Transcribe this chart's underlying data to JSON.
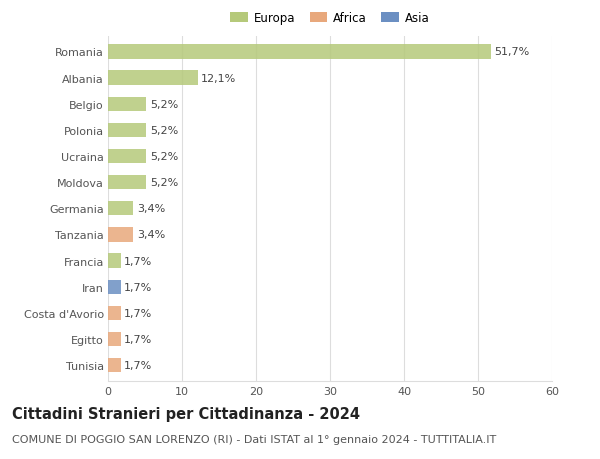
{
  "countries": [
    "Romania",
    "Albania",
    "Belgio",
    "Polonia",
    "Ucraina",
    "Moldova",
    "Germania",
    "Tanzania",
    "Francia",
    "Iran",
    "Costa d'Avorio",
    "Egitto",
    "Tunisia"
  ],
  "values": [
    51.7,
    12.1,
    5.2,
    5.2,
    5.2,
    5.2,
    3.4,
    3.4,
    1.7,
    1.7,
    1.7,
    1.7,
    1.7
  ],
  "labels": [
    "51,7%",
    "12,1%",
    "5,2%",
    "5,2%",
    "5,2%",
    "5,2%",
    "3,4%",
    "3,4%",
    "1,7%",
    "1,7%",
    "1,7%",
    "1,7%",
    "1,7%"
  ],
  "colors": [
    "#b5c97a",
    "#b5c97a",
    "#b5c97a",
    "#b5c97a",
    "#b5c97a",
    "#b5c97a",
    "#b5c97a",
    "#e8a87c",
    "#b5c97a",
    "#6b8fc2",
    "#e8a87c",
    "#e8a87c",
    "#e8a87c"
  ],
  "legend_labels": [
    "Europa",
    "Africa",
    "Asia"
  ],
  "legend_colors": [
    "#b5c97a",
    "#e8a87c",
    "#6b8fc2"
  ],
  "title": "Cittadini Stranieri per Cittadinanza - 2024",
  "subtitle": "COMUNE DI POGGIO SAN LORENZO (RI) - Dati ISTAT al 1° gennaio 2024 - TUTTITALIA.IT",
  "xlim": [
    0,
    60
  ],
  "xticks": [
    0,
    10,
    20,
    30,
    40,
    50,
    60
  ],
  "bg_color": "#ffffff",
  "grid_color": "#dddddd",
  "bar_height": 0.55,
  "title_fontsize": 10.5,
  "subtitle_fontsize": 8,
  "label_fontsize": 8,
  "tick_fontsize": 8,
  "legend_fontsize": 8.5
}
